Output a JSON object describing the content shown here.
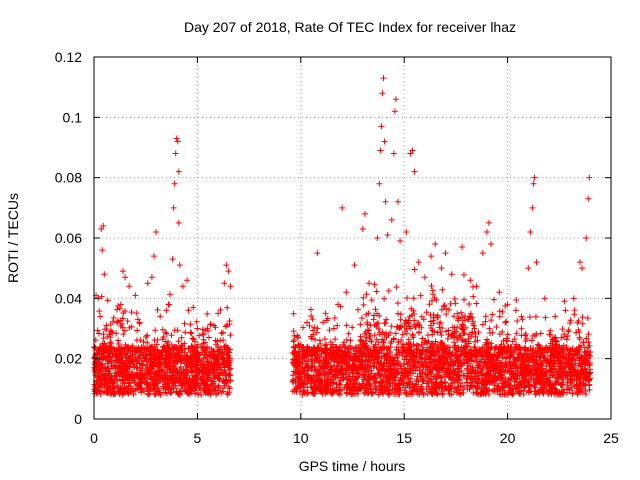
{
  "chart_data": {
    "type": "scatter",
    "title": "Day 207 of 2018, Rate Of TEC Index for receiver lhaz",
    "xlabel": "GPS time / hours",
    "ylabel": "ROTI / TECUs",
    "xlim": [
      0,
      25
    ],
    "ylim": [
      0,
      0.12
    ],
    "x_ticks": [
      0,
      5,
      10,
      15,
      20,
      25
    ],
    "x_tick_labels": [
      "0",
      "5",
      "10",
      "15",
      "20",
      "25"
    ],
    "y_ticks": [
      0,
      0.02,
      0.04,
      0.06,
      0.08,
      0.1,
      0.12
    ],
    "y_tick_labels": [
      "0",
      "0.02",
      "0.04",
      "0.06",
      "0.08",
      "0.1",
      "0.12"
    ],
    "grid": true,
    "marker": "+",
    "color": "#ff0000",
    "data_gaps_hours": [
      [
        6.6,
        9.6
      ]
    ],
    "series": [
      {
        "name": "ROTI",
        "points_sample_note": "dense scatter; representative points read from figure",
        "points": [
          [
            0.1,
            0.041
          ],
          [
            0.2,
            0.04
          ],
          [
            0.35,
            0.063
          ],
          [
            0.4,
            0.056
          ],
          [
            0.45,
            0.064
          ],
          [
            0.5,
            0.048
          ],
          [
            0.3,
            0.034
          ],
          [
            0.6,
            0.031
          ],
          [
            1.3,
            0.038
          ],
          [
            1.4,
            0.049
          ],
          [
            1.5,
            0.047
          ],
          [
            1.7,
            0.044
          ],
          [
            2.0,
            0.041
          ],
          [
            2.2,
            0.032
          ],
          [
            2.6,
            0.045
          ],
          [
            2.8,
            0.047
          ],
          [
            2.9,
            0.054
          ],
          [
            3.0,
            0.062
          ],
          [
            3.2,
            0.034
          ],
          [
            3.5,
            0.036
          ],
          [
            3.6,
            0.038
          ],
          [
            3.8,
            0.053
          ],
          [
            3.85,
            0.07
          ],
          [
            3.9,
            0.078
          ],
          [
            3.95,
            0.088
          ],
          [
            4.0,
            0.093
          ],
          [
            4.05,
            0.092
          ],
          [
            4.1,
            0.082
          ],
          [
            4.1,
            0.065
          ],
          [
            4.15,
            0.051
          ],
          [
            4.3,
            0.044
          ],
          [
            4.5,
            0.046
          ],
          [
            4.8,
            0.037
          ],
          [
            5.0,
            0.03
          ],
          [
            5.3,
            0.028
          ],
          [
            5.8,
            0.031
          ],
          [
            6.0,
            0.035
          ],
          [
            6.3,
            0.045
          ],
          [
            6.4,
            0.051
          ],
          [
            6.5,
            0.049
          ],
          [
            6.6,
            0.044
          ],
          [
            10.3,
            0.032
          ],
          [
            10.6,
            0.028
          ],
          [
            10.8,
            0.055
          ],
          [
            11.2,
            0.035
          ],
          [
            11.6,
            0.03
          ],
          [
            11.8,
            0.038
          ],
          [
            12.0,
            0.07
          ],
          [
            12.2,
            0.042
          ],
          [
            12.6,
            0.051
          ],
          [
            13.0,
            0.063
          ],
          [
            13.1,
            0.068
          ],
          [
            13.3,
            0.045
          ],
          [
            13.7,
            0.06
          ],
          [
            13.8,
            0.078
          ],
          [
            13.85,
            0.089
          ],
          [
            13.9,
            0.097
          ],
          [
            13.95,
            0.108
          ],
          [
            14.0,
            0.113
          ],
          [
            14.05,
            0.092
          ],
          [
            14.1,
            0.072
          ],
          [
            14.2,
            0.061
          ],
          [
            14.4,
            0.066
          ],
          [
            14.5,
            0.088
          ],
          [
            14.55,
            0.102
          ],
          [
            14.6,
            0.106
          ],
          [
            14.7,
            0.072
          ],
          [
            14.8,
            0.059
          ],
          [
            15.1,
            0.062
          ],
          [
            15.3,
            0.088
          ],
          [
            15.4,
            0.089
          ],
          [
            15.5,
            0.082
          ],
          [
            15.7,
            0.052
          ],
          [
            16.0,
            0.047
          ],
          [
            16.3,
            0.054
          ],
          [
            16.5,
            0.058
          ],
          [
            16.8,
            0.05
          ],
          [
            17.0,
            0.055
          ],
          [
            17.3,
            0.048
          ],
          [
            17.8,
            0.057
          ],
          [
            18.2,
            0.046
          ],
          [
            18.5,
            0.044
          ],
          [
            18.8,
            0.055
          ],
          [
            19.0,
            0.062
          ],
          [
            19.1,
            0.065
          ],
          [
            19.2,
            0.058
          ],
          [
            19.6,
            0.042
          ],
          [
            20.0,
            0.038
          ],
          [
            20.4,
            0.036
          ],
          [
            21.0,
            0.05
          ],
          [
            21.1,
            0.062
          ],
          [
            21.2,
            0.07
          ],
          [
            21.25,
            0.078
          ],
          [
            21.3,
            0.08
          ],
          [
            21.4,
            0.052
          ],
          [
            21.8,
            0.04
          ],
          [
            22.3,
            0.034
          ],
          [
            22.8,
            0.036
          ],
          [
            23.2,
            0.04
          ],
          [
            23.5,
            0.052
          ],
          [
            23.6,
            0.05
          ],
          [
            23.8,
            0.06
          ],
          [
            23.9,
            0.073
          ],
          [
            23.95,
            0.08
          ]
        ]
      }
    ]
  }
}
